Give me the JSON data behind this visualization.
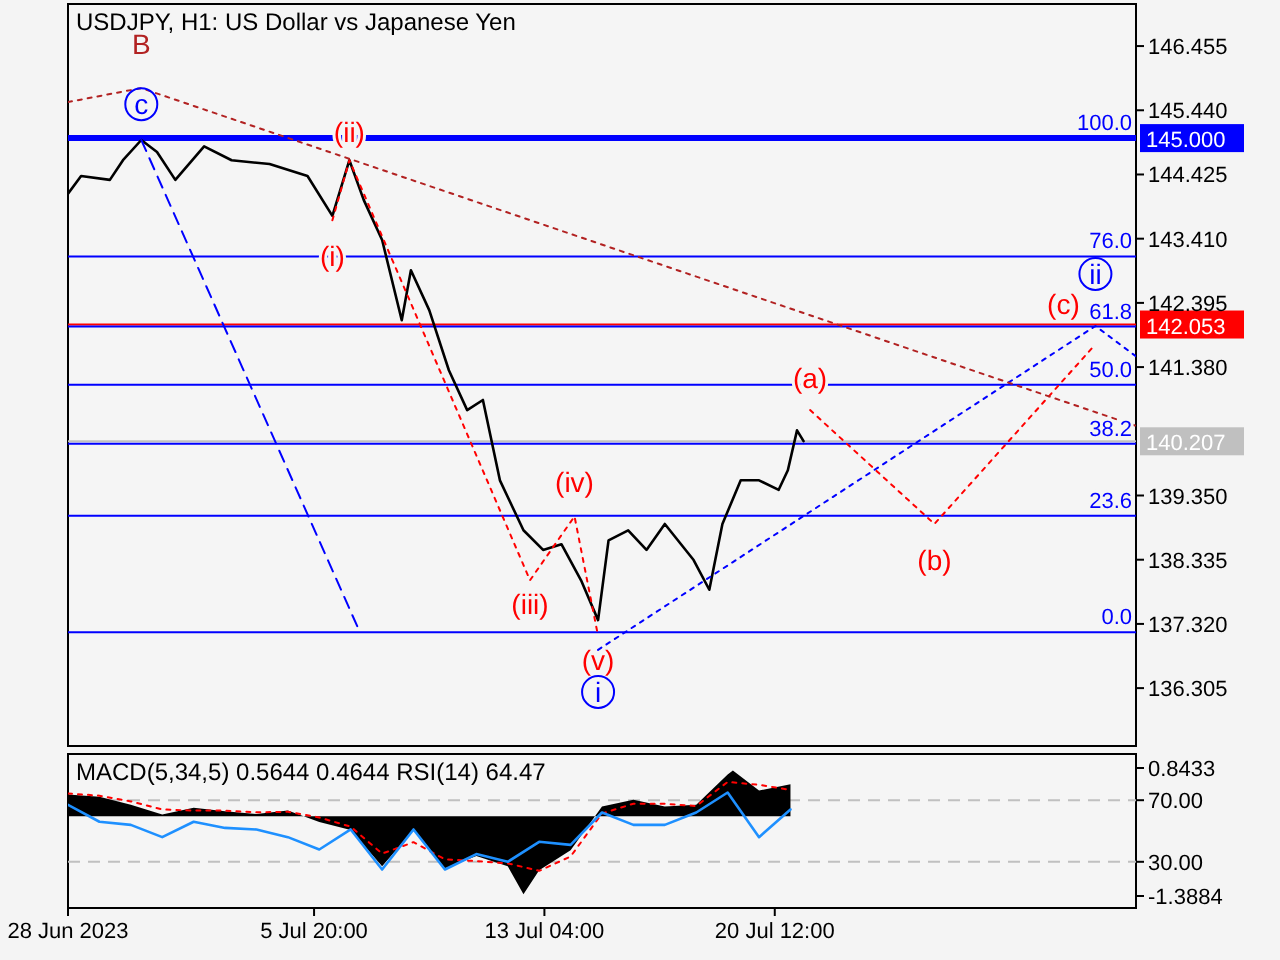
{
  "chart_data": [
    {
      "type": "line",
      "title": "USDJPY, H1:  US Dollar vs Japanese Yen",
      "xlim": [
        "2023-06-28T00:00",
        "2023-08-01T00:00"
      ],
      "ylim": [
        135.39,
        147.12
      ],
      "yticks": [
        146.455,
        {
          "value": 145.44,
          "label": "145.440"
        },
        144.425,
        {
          "value": 143.41,
          "label": "143.410"
        },
        142.395,
        {
          "value": 141.38,
          "label": "141.380"
        },
        {
          "value": 139.35,
          "label": "139.350"
        },
        138.335,
        {
          "value": 137.32,
          "label": "137.320"
        },
        136.305
      ],
      "tick_labels": "y",
      "grid": false,
      "series": [
        {
          "color": "#000000",
          "line_style": "solid",
          "x": [
            "2023-06-28T00:00",
            "2023-06-28T10:00",
            "2023-06-29T08:00",
            "2023-06-29T18:00",
            "2023-06-30T08:00",
            "2023-06-30T20:00",
            "2023-07-01T10:00",
            "2023-07-02T08:00",
            "2023-07-03T05:00",
            "2023-07-04T10:00",
            "2023-07-05T15:00",
            "2023-07-06T10:00",
            "2023-07-06T23:00",
            "2023-07-07T10:00",
            "2023-07-08T00:00",
            "2023-07-08T15:00",
            "2023-07-08T22:00",
            "2023-07-09T12:00",
            "2023-07-10T03:00",
            "2023-07-10T17:00",
            "2023-07-11T05:00",
            "2023-07-11T18:00",
            "2023-07-12T12:00",
            "2023-07-13T03:00",
            "2023-07-13T17:00",
            "2023-07-14T08:00",
            "2023-07-14T21:00",
            "2023-07-15T05:00",
            "2023-07-15T20:00",
            "2023-07-16T10:00",
            "2023-07-17T00:00",
            "2023-07-17T22:00",
            "2023-07-18T10:00",
            "2023-07-18T20:00",
            "2023-07-19T10:00",
            "2023-07-20T00:00",
            "2023-07-20T15:00",
            "2023-07-20T22:00",
            "2023-07-21T05:00",
            "2023-07-21T10:00"
          ],
          "values": [
            144.12,
            144.4,
            144.34,
            144.65,
            144.97,
            144.78,
            144.34,
            144.87,
            144.65,
            144.59,
            144.4,
            143.77,
            144.65,
            144.02,
            143.39,
            142.12,
            142.91,
            142.28,
            141.33,
            140.7,
            140.86,
            139.59,
            138.8,
            138.49,
            138.58,
            138.01,
            137.38,
            138.64,
            138.8,
            138.49,
            138.9,
            138.33,
            137.86,
            138.9,
            139.59,
            139.59,
            139.44,
            139.75,
            140.38,
            140.21
          ]
        },
        {
          "color": "#ff0000",
          "line_style": "dotted",
          "x": [
            "2023-07-06T10:00",
            "2023-07-06T23:00",
            "2023-07-12T17:00",
            "2023-07-14T03:00",
            "2023-07-14T21:00"
          ],
          "values": [
            143.7,
            144.65,
            138.01,
            139.02,
            137.13
          ]
        },
        {
          "color": "#ff0000",
          "line_style": "dotted",
          "x": [
            "2023-07-21T15:00",
            "2023-07-25T14:00",
            "2023-07-30T17:00"
          ],
          "values": [
            140.7,
            138.9,
            141.74
          ]
        },
        {
          "color": "#0000ff",
          "line_style": "dotted",
          "x": [
            "2023-07-14T21:00",
            "2023-07-30T17:00",
            "2023-08-01T00:00"
          ],
          "values": [
            136.91,
            142.03,
            141.55
          ]
        },
        {
          "color": "#b22222",
          "line_style": "dotted",
          "x": [
            "2023-06-28T00:00",
            "2023-06-30T08:00",
            "2023-08-01T00:00"
          ],
          "values": [
            145.57,
            145.79,
            140.45
          ]
        },
        {
          "color": "#0000ff",
          "line_style": "dashed",
          "x": [
            "2023-06-30T08:00",
            "2023-07-07T07:00"
          ],
          "values": [
            144.97,
            137.19
          ]
        }
      ],
      "ref_lines": [
        {
          "axis": "y",
          "value": 145.0,
          "label": "145.000",
          "color": "#0000ff"
        },
        {
          "axis": "y",
          "value": 142.053,
          "label": "142.053",
          "color": "#ff0000"
        },
        {
          "axis": "y",
          "value": 140.207,
          "label": "140.207",
          "color": "#c0c0c0"
        },
        {
          "axis": "y",
          "value": 143.13,
          "color": "#0000ff"
        },
        {
          "axis": "y",
          "value": 142.02,
          "color": "#0000ff"
        },
        {
          "axis": "y",
          "value": 141.1,
          "color": "#0000ff"
        },
        {
          "axis": "y",
          "value": 140.17,
          "color": "#0000ff"
        },
        {
          "axis": "y",
          "value": 139.03,
          "color": "#0000ff"
        },
        {
          "axis": "y",
          "value": 137.19,
          "color": "#0000ff"
        }
      ],
      "annotations": [
        {
          "text": "B",
          "x": "2023-06-30T08:00",
          "y": 145.79
        },
        {
          "text": "c",
          "x": "2023-06-30T08:00",
          "y": 145.79
        },
        {
          "text": "(ii)",
          "x": "2023-07-06T23:00",
          "y": 144.65
        },
        {
          "text": "(i)",
          "x": "2023-07-06T10:00",
          "y": 143.7
        },
        {
          "text": "(iii)",
          "x": "2023-07-12T17:00",
          "y": 138.01
        },
        {
          "text": "(iv)",
          "x": "2023-07-14T03:00",
          "y": 139.02
        },
        {
          "text": "(v)",
          "x": "2023-07-14T21:00",
          "y": 137.13
        },
        {
          "text": "i",
          "x": "2023-07-14T21:00",
          "y": 137.13
        },
        {
          "text": "(a)",
          "x": "2023-07-21T15:00",
          "y": 140.7
        },
        {
          "text": "(b)",
          "x": "2023-07-25T14:00",
          "y": 138.9
        },
        {
          "text": "(c)",
          "x": "2023-07-30T17:00",
          "y": 141.74
        },
        {
          "text": "ii",
          "x": "2023-07-30T17:00",
          "y": 142.03
        },
        {
          "text": "100.0",
          "x": "2023-08-01T00:00",
          "y": 145.0
        },
        {
          "text": "76.0",
          "x": "2023-08-01T00:00",
          "y": 143.13
        },
        {
          "text": "61.8",
          "x": "2023-08-01T00:00",
          "y": 142.02
        },
        {
          "text": "50.0",
          "x": "2023-08-01T00:00",
          "y": 141.1
        },
        {
          "text": "38.2",
          "x": "2023-08-01T00:00",
          "y": 140.17
        },
        {
          "text": "23.6",
          "x": "2023-08-01T00:00",
          "y": 139.03
        },
        {
          "text": "0.0",
          "x": "2023-08-01T00:00",
          "y": 137.19
        }
      ]
    },
    {
      "type": "line",
      "title": "MACD(5,34,5) 0.5644 0.4644 RSI(14) 64.47",
      "xlim": [
        "2023-06-28T00:00",
        "2023-08-01T00:00"
      ],
      "xticks": [
        {
          "value": "2023-06-28",
          "label": "28 Jun 2023"
        },
        {
          "value": "2023-07-05T20:00",
          "label": "5 Jul 20:00"
        },
        {
          "value": "2023-07-13T04:00",
          "label": "13 Jul 04:00"
        },
        {
          "value": "2023-07-20T12:00",
          "label": "20 Jul 12:00"
        }
      ],
      "ylim": [
        -1.598,
        1.087
      ],
      "yticks": [
        0.8433,
        -1.3884
      ],
      "y2lim": [
        0,
        100
      ],
      "y2ticks": [
        {
          "value": 70,
          "label": "70.00"
        },
        {
          "value": 30,
          "label": "30.00"
        }
      ],
      "grid": false,
      "ref_lines": [
        {
          "axis": "y2",
          "value": 70,
          "label": null,
          "color": "#c0c0c0",
          "line_style": "dashed"
        },
        {
          "axis": "y2",
          "value": 30,
          "label": null,
          "color": "#c0c0c0",
          "line_style": "dashed"
        }
      ],
      "series": [
        {
          "type": "area",
          "color": "#000000",
          "x": [
            "2023-06-28",
            "2023-06-29",
            "2023-06-30",
            "2023-07-01",
            "2023-07-02",
            "2023-07-03",
            "2023-07-04",
            "2023-07-05",
            "2023-07-06",
            "2023-07-07",
            "2023-07-08",
            "2023-07-09",
            "2023-07-10",
            "2023-07-11",
            "2023-07-12",
            "2023-07-12T12:00",
            "2023-07-13",
            "2023-07-14",
            "2023-07-15",
            "2023-07-16",
            "2023-07-17",
            "2023-07-18",
            "2023-07-19",
            "2023-07-19T04:00",
            "2023-07-20",
            "2023-07-21"
          ],
          "values": [
            0.38,
            0.34,
            0.2,
            0.03,
            0.15,
            0.09,
            0.04,
            0.1,
            -0.1,
            -0.24,
            -0.87,
            -0.24,
            -0.91,
            -0.69,
            -0.87,
            -1.36,
            -0.94,
            -0.59,
            0.17,
            0.29,
            0.17,
            0.2,
            0.73,
            0.8,
            0.45,
            0.56
          ]
        },
        {
          "color": "#ff0000",
          "line_style": "dotted",
          "x": [
            "2023-06-28",
            "2023-06-29",
            "2023-06-30",
            "2023-07-01",
            "2023-07-02",
            "2023-07-03",
            "2023-07-04",
            "2023-07-05",
            "2023-07-06",
            "2023-07-07",
            "2023-07-08",
            "2023-07-09",
            "2023-07-10",
            "2023-07-11",
            "2023-07-12",
            "2023-07-13",
            "2023-07-14",
            "2023-07-15",
            "2023-07-16",
            "2023-07-17",
            "2023-07-18",
            "2023-07-19",
            "2023-07-20",
            "2023-07-21"
          ],
          "values": [
            0.4,
            0.36,
            0.26,
            0.12,
            0.1,
            0.1,
            0.07,
            0.08,
            -0.02,
            -0.18,
            -0.65,
            -0.45,
            -0.75,
            -0.78,
            -0.82,
            -0.95,
            -0.7,
            0.05,
            0.22,
            0.22,
            0.18,
            0.6,
            0.55,
            0.46
          ]
        },
        {
          "color": "#1e90ff",
          "line_style": "solid",
          "axis": "y2",
          "x": [
            "2023-06-28",
            "2023-06-29",
            "2023-06-30",
            "2023-07-01",
            "2023-07-02",
            "2023-07-03",
            "2023-07-04",
            "2023-07-05",
            "2023-07-06",
            "2023-07-07",
            "2023-07-08",
            "2023-07-09",
            "2023-07-10",
            "2023-07-11",
            "2023-07-12",
            "2023-07-13",
            "2023-07-14",
            "2023-07-15",
            "2023-07-16",
            "2023-07-17",
            "2023-07-18",
            "2023-07-19",
            "2023-07-20",
            "2023-07-21"
          ],
          "values": [
            67,
            56,
            54,
            46,
            56,
            52,
            51,
            46,
            38,
            51,
            25,
            51,
            25,
            35,
            30,
            43,
            41,
            62,
            54,
            54,
            62,
            75,
            46,
            64
          ]
        }
      ]
    }
  ]
}
